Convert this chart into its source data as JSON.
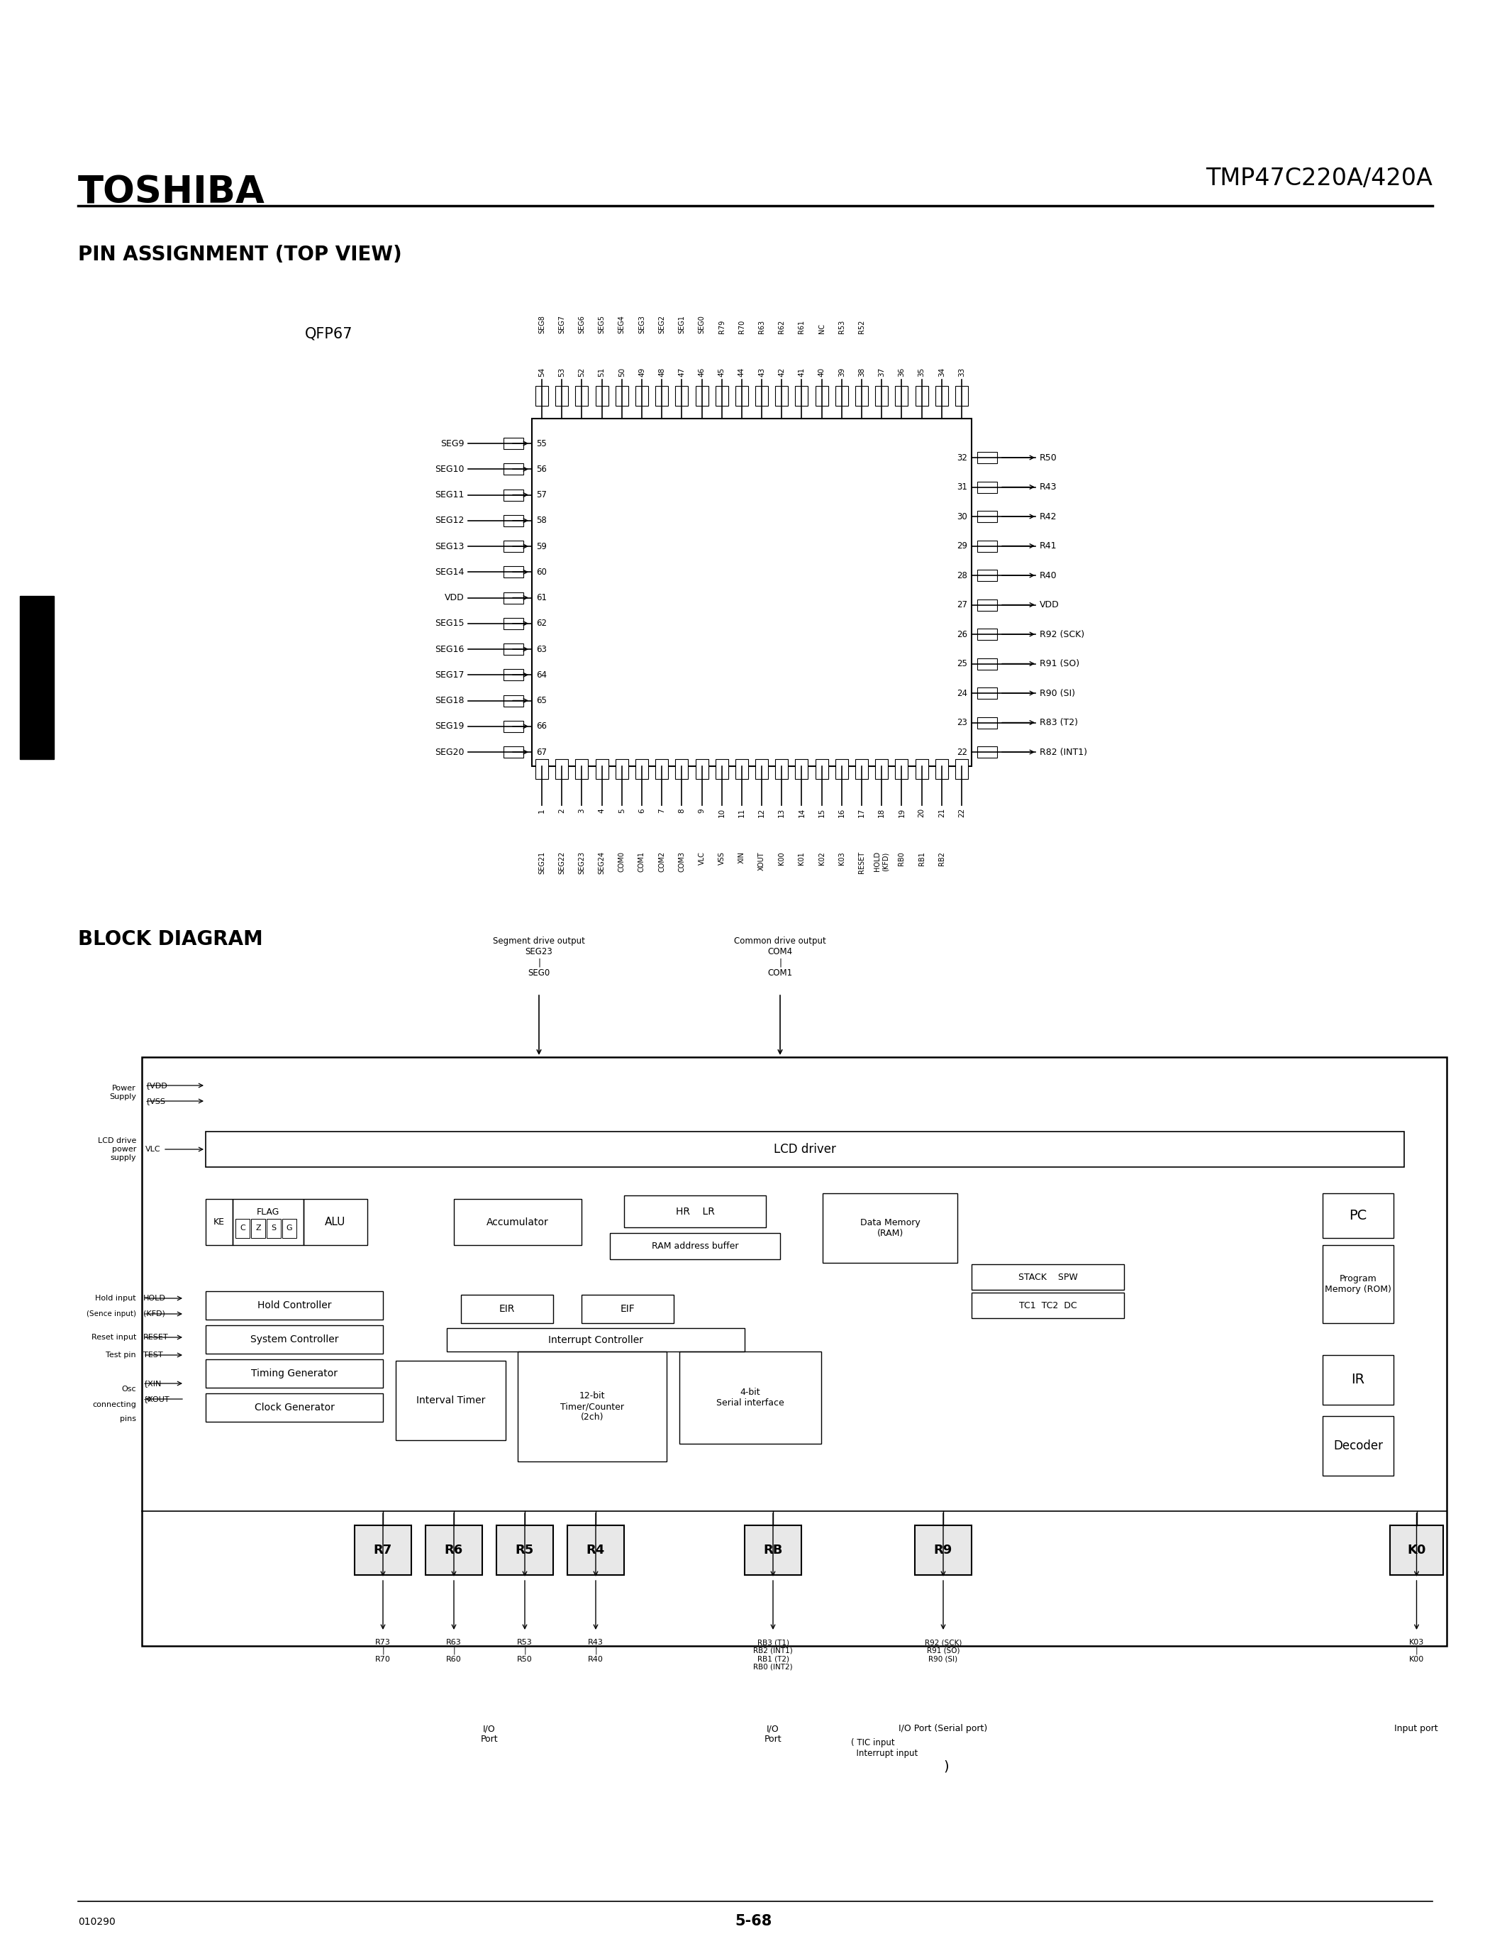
{
  "title_company": "TOSHIBA",
  "title_part": "TMP47C220A/420A",
  "section1_title": "PIN ASSIGNMENT (TOP VIEW)",
  "qfp_label": "QFP67",
  "section2_title": "BLOCK DIAGRAM",
  "page_number": "5-68",
  "doc_number": "010290",
  "bg_color": "#ffffff",
  "text_color": "#000000",
  "left_pins": [
    [
      "SEG9",
      "55"
    ],
    [
      "SEG10",
      "56"
    ],
    [
      "SEG11",
      "57"
    ],
    [
      "SEG12",
      "58"
    ],
    [
      "SEG13",
      "59"
    ],
    [
      "SEG14",
      "60"
    ],
    [
      "VDD",
      "61"
    ],
    [
      "SEG15",
      "62"
    ],
    [
      "SEG16",
      "63"
    ],
    [
      "SEG17",
      "64"
    ],
    [
      "SEG18",
      "65"
    ],
    [
      "SEG19",
      "66"
    ],
    [
      "SEG20",
      "67"
    ]
  ],
  "right_pins": [
    [
      "32",
      "R50"
    ],
    [
      "31",
      "R43"
    ],
    [
      "30",
      "R42"
    ],
    [
      "29",
      "R41"
    ],
    [
      "28",
      "R40"
    ],
    [
      "27",
      "VDD"
    ],
    [
      "26",
      "R92 (SCK)"
    ],
    [
      "25",
      "R91 (SO)"
    ],
    [
      "24",
      "R90 (SI)"
    ],
    [
      "23",
      "R83 (T2)"
    ],
    [
      "22",
      "R82 (INT1)"
    ]
  ],
  "top_sig_labels": [
    "SEG8",
    "SEG7",
    "SEG6",
    "SEG5",
    "SEG4",
    "SEG3",
    "SEG2",
    "SEG1",
    "SEG0",
    "R79",
    "R70",
    "R63",
    "R62",
    "R61",
    "NC",
    "R53",
    "R52",
    "",
    "",
    "",
    "",
    ""
  ],
  "top_nums": [
    "54",
    "53",
    "52",
    "51",
    "50",
    "49",
    "48",
    "47",
    "46",
    "45",
    "44",
    "43",
    "42",
    "41",
    "40",
    "39",
    "38",
    "37",
    "36",
    "35",
    "34",
    "33"
  ],
  "bottom_sig_labels": [
    "SEG21",
    "SEG22",
    "SEG23",
    "SEG24",
    "COM0",
    "COM1",
    "COM2",
    "COM3",
    "VLC",
    "VSS",
    "XIN",
    "XOUT",
    "K00",
    "K01",
    "K02",
    "K03",
    "RESET",
    "HOLD\n(KFD)",
    "RB0",
    "RB1",
    "RB2",
    ""
  ],
  "bottom_nums": [
    "1",
    "2",
    "3",
    "4",
    "5",
    "6",
    "7",
    "8",
    "9",
    "10",
    "11",
    "12",
    "13",
    "14",
    "15",
    "16",
    "17",
    "18",
    "19",
    "20",
    "21",
    "22"
  ],
  "block_components": {
    "lcd_driver": "LCD driver",
    "accumulator": "Accumulator",
    "hr_lr": "HR    LR",
    "ram_addr": "RAM address buffer",
    "data_memory": "Data Memory\n(RAM)",
    "pc": "PC",
    "stack_spw": "STACK    SPW",
    "tc1_tc2_dc": "TC1  TC2  DC",
    "prog_mem": "Program\nMemory (ROM)",
    "ir": "IR",
    "decoder": "Decoder",
    "alu": "ALU",
    "flag": "FLAG",
    "ke": "KE",
    "czsg": [
      "C",
      "Z",
      "S",
      "G"
    ],
    "eir": "EIR",
    "eif": "EIF",
    "interrupt": "Interrupt Controller",
    "hold_ctrl": "Hold Controller",
    "sys_ctrl": "System Controller",
    "timing_gen": "Timing Generator",
    "clock_gen": "Clock Generator",
    "interval": "Interval Timer",
    "timer_counter": "12-bit\nTimer/Counter\n(2ch)",
    "serial_if": "4-bit\nSerial interface"
  }
}
